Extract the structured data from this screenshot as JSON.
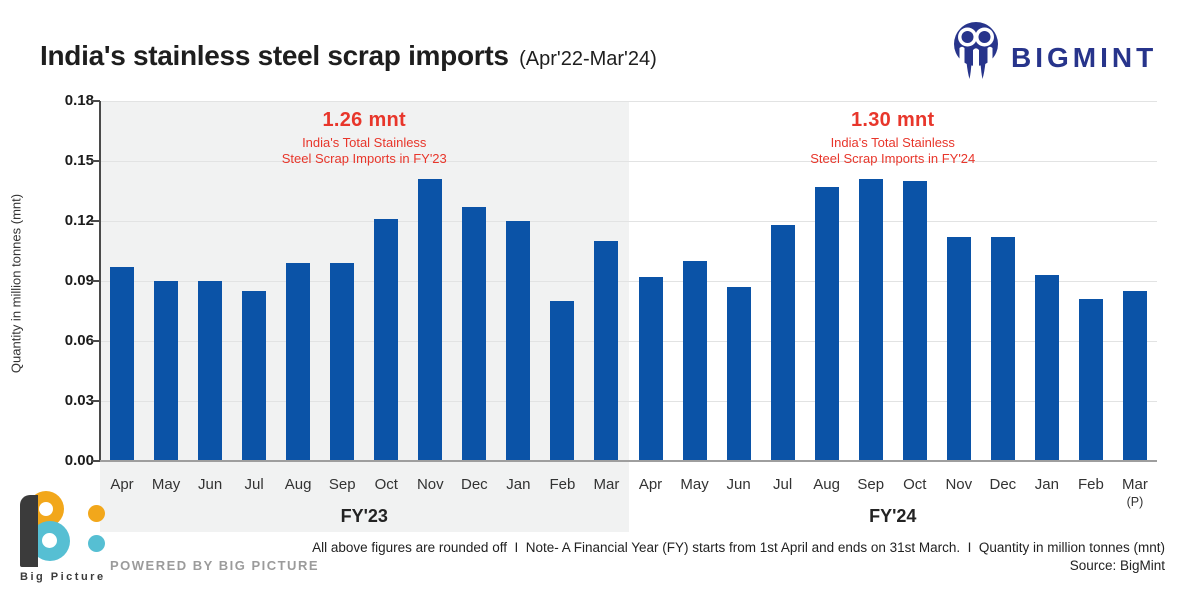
{
  "header": {
    "title": "India's stainless steel scrap imports",
    "subtitle": "(Apr'22-Mar'24)",
    "brand_name": "BIGMINT",
    "brand_color": "#27348B"
  },
  "chart_data": {
    "type": "bar",
    "title": "India's stainless steel scrap imports (Apr'22-Mar'24)",
    "ylabel": "Quantity in million tonnes (mnt)",
    "unit": "mnt",
    "ylim": [
      0,
      0.18
    ],
    "yticks": [
      0,
      0.03,
      0.06,
      0.09,
      0.12,
      0.15,
      0.18
    ],
    "ytick_labels": [
      "0.00",
      "0.03",
      "0.06",
      "0.09",
      "0.12",
      "0.15",
      "0.18"
    ],
    "grid": "horizontal",
    "legend": "none",
    "bar_color": "#0B53A7",
    "annotation_color": "#E8362B",
    "categories": [
      "Apr",
      "May",
      "Jun",
      "Jul",
      "Aug",
      "Sep",
      "Oct",
      "Nov",
      "Dec",
      "Jan",
      "Feb",
      "Mar"
    ],
    "groups": [
      {
        "label": "FY'23",
        "panel_background": "#F1F2F2",
        "values": [
          0.097,
          0.09,
          0.09,
          0.085,
          0.099,
          0.099,
          0.121,
          0.141,
          0.127,
          0.12,
          0.08,
          0.11
        ],
        "total_annotation": {
          "headline": "1.26 mnt",
          "line1": "India's Total Stainless",
          "line2": "Steel Scrap Imports in FY'23"
        }
      },
      {
        "label": "FY'24",
        "panel_background": "#FFFFFF",
        "values": [
          0.092,
          0.1,
          0.087,
          0.118,
          0.137,
          0.141,
          0.14,
          0.112,
          0.112,
          0.093,
          0.081,
          0.085
        ],
        "provisional_note": "(P)",
        "provisional_month_index": 11,
        "total_annotation": {
          "headline": "1.30 mnt",
          "line1": "India's Total Stainless",
          "line2": "Steel Scrap Imports in FY'24"
        }
      }
    ]
  },
  "footer": {
    "note": "All above figures are rounded off  I  Note- A Financial Year (FY) starts from 1st April and ends on 31st March.  I  Quantity in million tonnes (mnt)",
    "source": "Source: BigMint",
    "powered_by": "POWERED BY BIG PICTURE",
    "bigpicture_label": "Big Picture",
    "bigpicture_orange": "#F2A71B",
    "bigpicture_teal": "#56BFD3"
  }
}
